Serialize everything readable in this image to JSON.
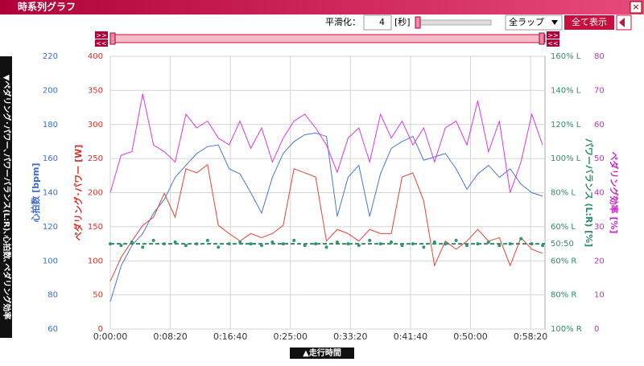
{
  "window": {
    "title": "時系列グラフ",
    "close": "×"
  },
  "toolbar": {
    "smoothing_label": "平滑化：",
    "smoothing_value": "4",
    "unit": "[秒]",
    "lap_select": "全ラップ",
    "show_all": "全て表示"
  },
  "range_buttons": [
    ">>",
    "<<"
  ],
  "side_tab": "▼ペダリング･パワー､パワーバランス(L:R)､心拍数､ペダリング効率",
  "bottom_tab": "▲走行時間",
  "chart_data": {
    "type": "line",
    "grid": true,
    "x": [
      0,
      90,
      180,
      270,
      360,
      450,
      540,
      630,
      720,
      810,
      900,
      990,
      1080,
      1170,
      1260,
      1350,
      1440,
      1530,
      1620,
      1710,
      1800,
      1890,
      1980,
      2070,
      2160,
      2250,
      2340,
      2430,
      2520,
      2610,
      2700,
      2790,
      2880,
      2970,
      3060,
      3150,
      3240,
      3330,
      3420,
      3510,
      3600
    ],
    "xlim": [
      0,
      3620
    ],
    "xticks": [
      {
        "value": 0,
        "label": "0:00:00"
      },
      {
        "value": 500,
        "label": "0:08:20"
      },
      {
        "value": 1000,
        "label": "0:16:40"
      },
      {
        "value": 1500,
        "label": "0:25:00"
      },
      {
        "value": 2000,
        "label": "0:33:20"
      },
      {
        "value": 2500,
        "label": "0:41:40"
      },
      {
        "value": 3000,
        "label": "0:50:00"
      },
      {
        "value": 3500,
        "label": "0:58:20"
      }
    ],
    "axes": [
      {
        "label": "心拍数 [bpm]",
        "color": "#3f6fc6",
        "lim": [
          60,
          220
        ],
        "ticks": [
          60,
          80,
          100,
          120,
          140,
          160,
          180,
          200,
          220
        ]
      },
      {
        "label": "ペダリング･パワー [W]",
        "color": "#d8312a",
        "lim": [
          0,
          400
        ],
        "ticks": [
          0,
          50,
          100,
          150,
          200,
          250,
          300,
          350,
          400
        ]
      },
      {
        "label": "パワーバランス (L:R) [%]",
        "color": "#2a8f66",
        "lim": [
          0,
          160
        ],
        "ticks": [
          {
            "value": 0,
            "label": "100% R"
          },
          {
            "value": 20,
            "label": "80% R"
          },
          {
            "value": 40,
            "label": "60% R"
          },
          {
            "value": 50,
            "label": "50:50"
          },
          {
            "value": 60,
            "label": "60% L"
          },
          {
            "value": 80,
            "label": "80% L"
          },
          {
            "value": 100,
            "label": "100% L"
          },
          {
            "value": 120,
            "label": "120% L"
          },
          {
            "value": 140,
            "label": "140% L"
          },
          {
            "value": 160,
            "label": "160% L"
          }
        ]
      },
      {
        "label": "ペダリング効率 [%]",
        "color": "#c828c8",
        "lim": [
          0,
          80
        ],
        "ticks": [
          0,
          10,
          20,
          30,
          40,
          50,
          60,
          70,
          80
        ]
      }
    ],
    "series": [
      {
        "name": "心拍数",
        "axis": 0,
        "style": "line",
        "color": "#4a78d0",
        "values": [
          76,
          97,
          109,
          116,
          128,
          136,
          149,
          156,
          163,
          167,
          168,
          154,
          151,
          140,
          128,
          149,
          163,
          170,
          174,
          175,
          173,
          126,
          149,
          156,
          126,
          151,
          166,
          170,
          173,
          159,
          161,
          163,
          154,
          142,
          151,
          156,
          149,
          154,
          145,
          140,
          138
        ]
      },
      {
        "name": "ペダリング･パワー",
        "axis": 1,
        "style": "line",
        "color": "#e0453c",
        "values": [
          70,
          105,
          129,
          152,
          164,
          199,
          164,
          235,
          229,
          241,
          152,
          140,
          129,
          140,
          134,
          140,
          152,
          235,
          229,
          223,
          129,
          146,
          140,
          129,
          146,
          140,
          140,
          223,
          229,
          188,
          93,
          129,
          117,
          129,
          146,
          129,
          134,
          93,
          134,
          117,
          111
        ]
      },
      {
        "name": "パワーバランス",
        "axis": 2,
        "style": "dots",
        "color": "#2a9a6a",
        "values": [
          50,
          49,
          51,
          48,
          52,
          50,
          51,
          49,
          50,
          52,
          48,
          50,
          51,
          50,
          49,
          51,
          50,
          52,
          49,
          50,
          48,
          51,
          50,
          49,
          52,
          50,
          51,
          49,
          50,
          48,
          51,
          50,
          52,
          49,
          50,
          51,
          49,
          50,
          53,
          50,
          49
        ]
      },
      {
        "name": "ペダリング効率",
        "axis": 3,
        "style": "line",
        "color": "#d63ad8",
        "values": [
          40,
          51,
          52,
          69,
          54,
          52,
          49,
          63,
          59,
          61,
          56,
          54,
          61,
          53,
          59,
          49,
          56,
          61,
          63,
          59,
          54,
          46,
          56,
          59,
          49,
          63,
          56,
          61,
          54,
          59,
          49,
          59,
          61,
          54,
          67,
          52,
          61,
          40,
          49,
          63,
          54
        ]
      }
    ]
  }
}
